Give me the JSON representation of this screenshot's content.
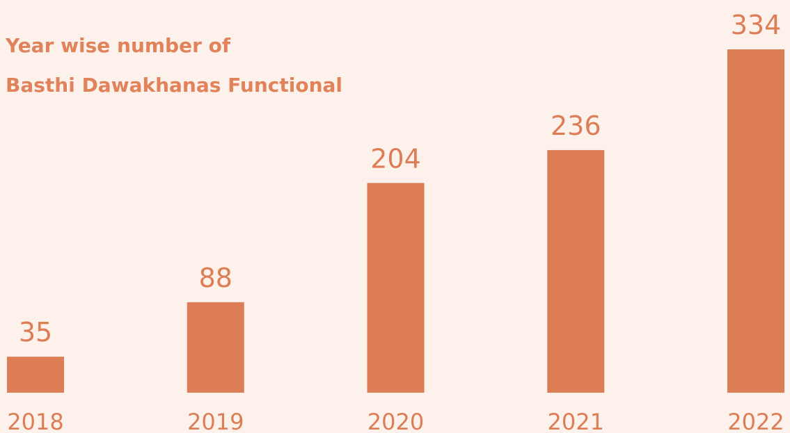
{
  "chart_data": {
    "type": "bar",
    "title": [
      "Year wise number of",
      "Basthi Dawakhanas Functional"
    ],
    "categories": [
      "2018",
      "2019",
      "2020",
      "2021",
      "2022"
    ],
    "values": [
      35,
      88,
      204,
      236,
      334
    ],
    "color": "#dc7d55"
  }
}
